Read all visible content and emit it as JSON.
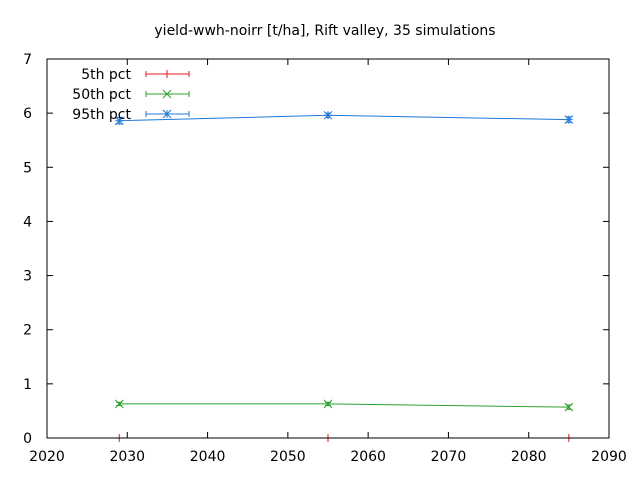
{
  "chart_data": {
    "type": "line",
    "title": "yield-wwh-noirr [t/ha], Rift valley, 35 simulations",
    "xlabel": "",
    "ylabel": "",
    "xlim": [
      2020,
      2090
    ],
    "ylim": [
      0,
      7
    ],
    "xticks": [
      "2020",
      "2030",
      "2040",
      "2050",
      "2060",
      "2070",
      "2080",
      "2090"
    ],
    "yticks": [
      "0",
      "1",
      "2",
      "3",
      "4",
      "5",
      "6",
      "7"
    ],
    "legend_position": "top-left",
    "grid": false,
    "series": [
      {
        "name": "5th pct",
        "color": "#e41a1c",
        "marker": "plus",
        "x": [
          2029,
          2055,
          2085
        ],
        "y": [
          0.0,
          0.0,
          0.0
        ],
        "err": [
          0.0,
          0.0,
          0.0
        ]
      },
      {
        "name": "50th pct",
        "color": "#2ca02c",
        "marker": "cross",
        "x": [
          2029,
          2055,
          2085
        ],
        "y": [
          0.63,
          0.63,
          0.57
        ],
        "err": [
          0.03,
          0.03,
          0.04
        ]
      },
      {
        "name": "95th pct",
        "color": "#1f78d4",
        "marker": "star",
        "x": [
          2029,
          2055,
          2085
        ],
        "y": [
          5.86,
          5.96,
          5.88
        ],
        "err": [
          0.06,
          0.04,
          0.05
        ]
      }
    ]
  }
}
